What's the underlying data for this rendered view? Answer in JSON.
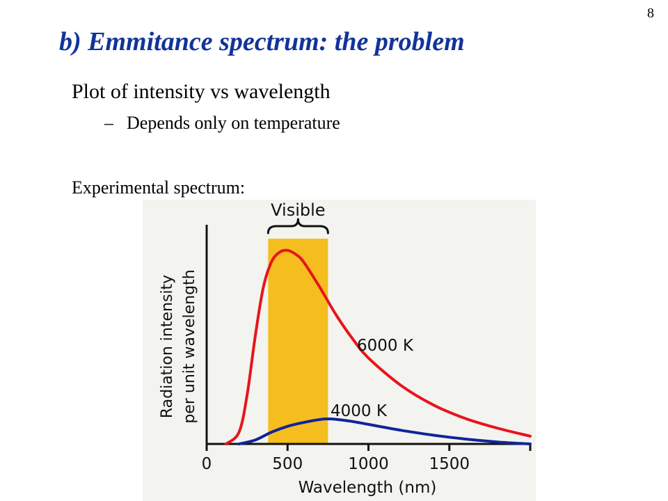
{
  "slide": {
    "number": "8",
    "title": "b) Emmitance spectrum: the problem",
    "bullet": "Plot of intensity vs wavelength",
    "sub_bullet_dash": "–",
    "sub_bullet": "Depends only on temperature",
    "spectrum_label": "Experimental spectrum:"
  },
  "colors": {
    "title": "#123399",
    "visible_band": "#f5be1e",
    "series_6000": "#e8141b",
    "series_4000": "#10249a",
    "panel_background": "#f3f3f0"
  },
  "chart_data": {
    "type": "line",
    "xlabel": "Wavelength (nm)",
    "ylabel": "Radiation intensity per unit wavelength",
    "ylabel_lines": [
      "Radiation intensity",
      "per unit wavelength"
    ],
    "xlim": [
      0,
      2000
    ],
    "ylim": [
      0,
      1
    ],
    "xticks": [
      0,
      500,
      1000,
      1500
    ],
    "grid": false,
    "annotations": [
      {
        "text": "Visible",
        "x_range": [
          380,
          750
        ],
        "type": "shaded_band_with_brace"
      }
    ],
    "series": [
      {
        "name": "6000 K",
        "color": "#e8141b",
        "x": [
          120,
          200,
          250,
          300,
          350,
          400,
          450,
          500,
          550,
          600,
          700,
          800,
          900,
          1000,
          1200,
          1400,
          1600,
          1800,
          2000
        ],
        "y": [
          0.0,
          0.06,
          0.25,
          0.55,
          0.8,
          0.93,
          0.98,
          0.99,
          0.97,
          0.93,
          0.8,
          0.66,
          0.54,
          0.44,
          0.3,
          0.2,
          0.13,
          0.08,
          0.04
        ]
      },
      {
        "name": "4000 K",
        "color": "#10249a",
        "x": [
          200,
          300,
          400,
          500,
          600,
          700,
          750,
          800,
          900,
          1000,
          1200,
          1400,
          1600,
          1800,
          2000
        ],
        "y": [
          0.0,
          0.02,
          0.06,
          0.09,
          0.11,
          0.125,
          0.128,
          0.126,
          0.115,
          0.1,
          0.07,
          0.045,
          0.025,
          0.01,
          0.0
        ]
      }
    ]
  }
}
